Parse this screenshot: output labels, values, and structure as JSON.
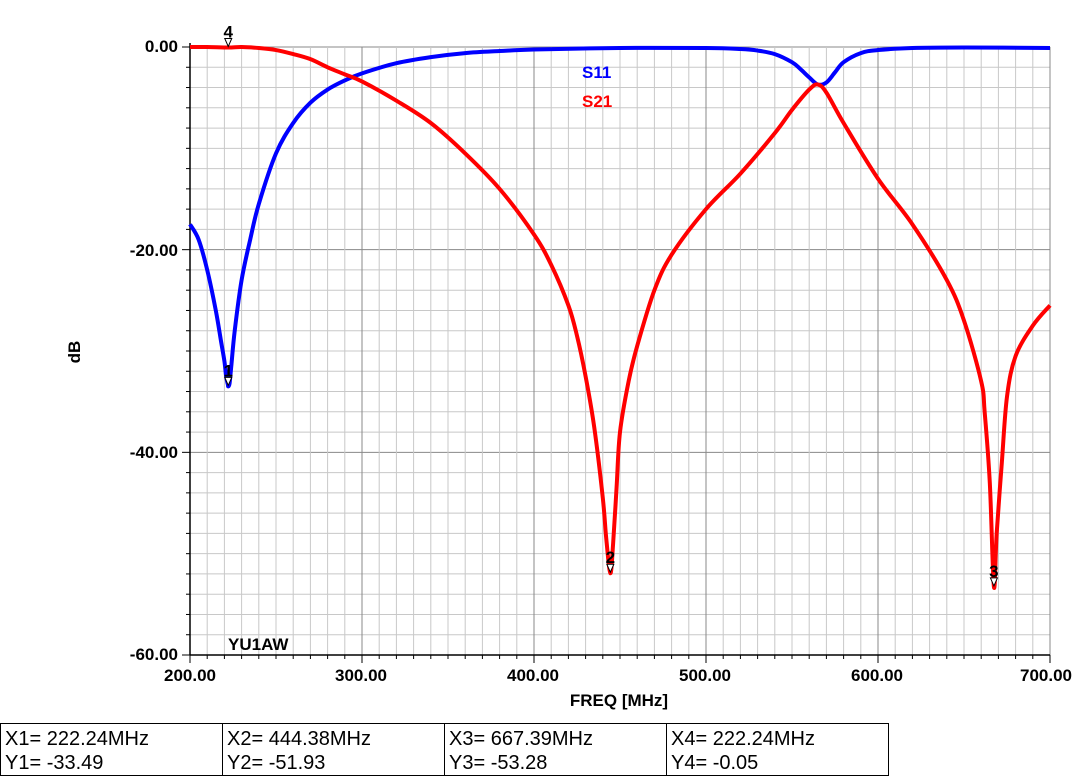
{
  "chart_data": {
    "type": "line",
    "xlabel": "FREQ [MHz]",
    "ylabel": "dB",
    "annotation": "YU1AW",
    "xlim": [
      200,
      700
    ],
    "ylim": [
      -60,
      0
    ],
    "x_ticks": [
      "200.00",
      "300.00",
      "400.00",
      "500.00",
      "600.00",
      "700.00"
    ],
    "y_ticks": [
      "0.00",
      "-20.00",
      "-40.00",
      "-60.00"
    ],
    "grid": true,
    "legend_position": "top-center",
    "series": [
      {
        "name": "S11",
        "color": "#0000ff",
        "x": [
          200,
          205,
          210,
          215,
          218,
          220,
          221,
          222,
          222.24,
          223,
          224,
          226,
          230,
          235,
          240,
          250,
          260,
          270,
          280,
          290,
          300,
          320,
          340,
          360,
          380,
          400,
          450,
          500,
          520,
          530,
          540,
          550,
          555,
          560,
          565,
          570,
          575,
          580,
          590,
          600,
          620,
          650,
          700
        ],
        "y": [
          -17.5,
          -19,
          -22,
          -26,
          -29,
          -31,
          -32.5,
          -33.3,
          -33.49,
          -33.2,
          -31.5,
          -28,
          -23,
          -19,
          -15.5,
          -10.5,
          -7.5,
          -5.5,
          -4.2,
          -3.3,
          -2.6,
          -1.6,
          -1.0,
          -0.6,
          -0.4,
          -0.25,
          -0.1,
          -0.1,
          -0.2,
          -0.35,
          -0.7,
          -1.5,
          -2.2,
          -3.0,
          -3.7,
          -3.5,
          -2.5,
          -1.5,
          -0.6,
          -0.3,
          -0.1,
          -0.05,
          -0.1
        ]
      },
      {
        "name": "S21",
        "color": "#ff0000",
        "x": [
          200,
          210,
          222.24,
          230,
          240,
          250,
          260,
          270,
          280,
          290,
          300,
          320,
          340,
          360,
          380,
          400,
          410,
          420,
          425,
          430,
          435,
          440,
          442,
          444.38,
          446,
          448,
          450,
          455,
          460,
          470,
          480,
          500,
          520,
          540,
          550,
          560,
          565,
          570,
          580,
          600,
          620,
          640,
          650,
          660,
          662,
          665,
          667.39,
          669,
          672,
          675,
          680,
          690,
          700
        ],
        "y": [
          0,
          0,
          -0.05,
          0,
          -0.1,
          -0.3,
          -0.7,
          -1.2,
          -2.0,
          -2.7,
          -3.4,
          -5.3,
          -7.5,
          -10.5,
          -14,
          -18.5,
          -21.5,
          -25.5,
          -28.5,
          -32.5,
          -37.5,
          -44.5,
          -48.5,
          -51.93,
          -49,
          -43.5,
          -38,
          -33,
          -29.5,
          -24,
          -20.5,
          -16,
          -12.5,
          -8.5,
          -6.2,
          -4.2,
          -3.7,
          -4.5,
          -7.5,
          -13,
          -17.5,
          -23,
          -27,
          -33,
          -36,
          -43,
          -53.28,
          -48,
          -41,
          -34.5,
          -30.5,
          -27.5,
          -25.5
        ]
      }
    ],
    "markers": [
      {
        "label": "1",
        "series": "S11",
        "x": 222.24,
        "y": -33.49
      },
      {
        "label": "2",
        "series": "S21",
        "x": 444.38,
        "y": -51.93
      },
      {
        "label": "3",
        "series": "S21",
        "x": 667.39,
        "y": -53.28
      },
      {
        "label": "4",
        "series": "S21",
        "x": 222.24,
        "y": -0.05
      }
    ]
  },
  "marker_table": [
    {
      "x_text": "X1= 222.24MHz",
      "y_text": "Y1= -33.49"
    },
    {
      "x_text": "X2= 444.38MHz",
      "y_text": "Y2= -51.93"
    },
    {
      "x_text": "X3= 667.39MHz",
      "y_text": "Y3= -53.28"
    },
    {
      "x_text": "X4= 222.24MHz",
      "y_text": "Y4= -0.05"
    }
  ]
}
